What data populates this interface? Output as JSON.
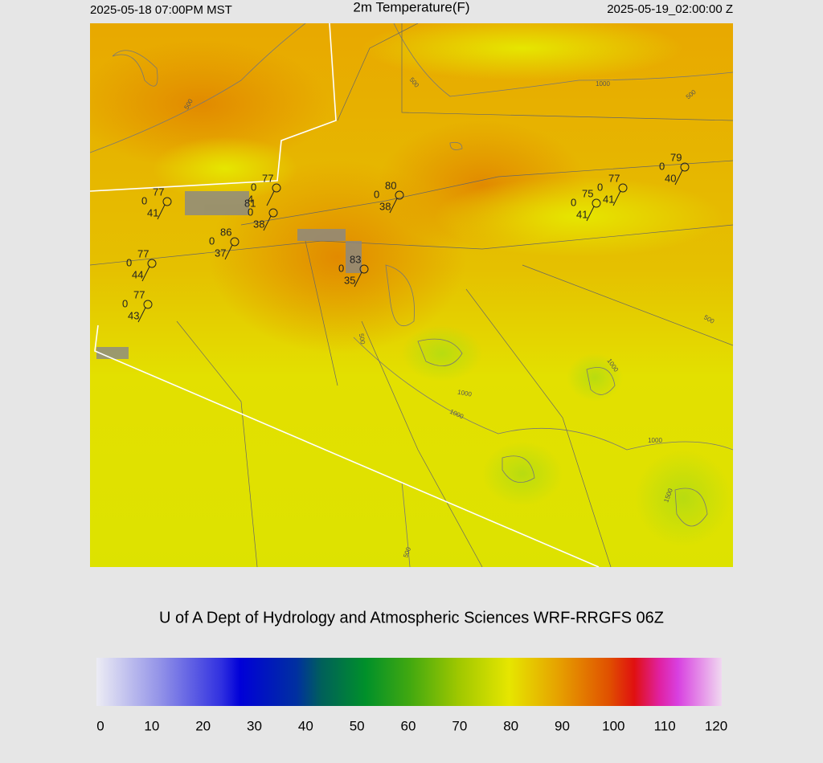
{
  "header": {
    "left": "2025-05-18 07:00PM MST",
    "title": "2m Temperature(F)",
    "right": "2025-05-19_02:00:00 Z"
  },
  "stations": [
    {
      "temp": 77,
      "pressure": 0,
      "dew": 41
    },
    {
      "temp": 77,
      "pressure": 0
    },
    {
      "temp": 81,
      "extra": 4,
      "pressure": 0,
      "dew": 38
    },
    {
      "temp": 86,
      "pressure": 0,
      "dew": 37
    },
    {
      "temp": 77,
      "pressure": 0,
      "dew": 44
    },
    {
      "temp": 77,
      "pressure": 0,
      "dew": 43
    },
    {
      "temp": 80,
      "pressure": 0,
      "dew": 38
    },
    {
      "temp": 83,
      "pressure": 0,
      "dew": 35
    },
    {
      "temp": 75,
      "pressure": 0,
      "dew": 41
    },
    {
      "temp": 77,
      "pressure": 0,
      "dew": 41
    },
    {
      "temp": 79,
      "pressure": 0,
      "dew": 40
    }
  ],
  "contour_labels": [
    500,
    500,
    1000,
    500,
    500,
    500,
    1000,
    1000,
    1000,
    1000,
    1500,
    500
  ],
  "footer": "U of A Dept of Hydrology and Atmospheric Sciences WRF-RRGFS 06Z",
  "colorbar": {
    "ticks": [
      0,
      10,
      20,
      30,
      40,
      50,
      60,
      70,
      80,
      90,
      100,
      110,
      120
    ],
    "lim": [
      0,
      120
    ]
  }
}
